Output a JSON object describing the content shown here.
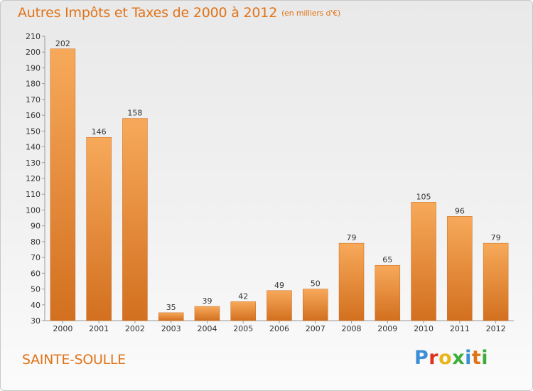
{
  "title": "Autres Impôts et Taxes de 2000 à 2012",
  "subtitle": "(en milliers d'€)",
  "place": "SAINTE-SOULLE",
  "logo": {
    "letters": [
      "P",
      "r",
      "o",
      "x",
      "i",
      "t",
      "i"
    ],
    "colors": [
      "#3b8fd4",
      "#e0301e",
      "#e8b51a",
      "#3cae3c",
      "#3b8fd4",
      "#e07418",
      "#3cae3c"
    ]
  },
  "colors": {
    "accent": "#e07418",
    "bar_top": "#f7a95a",
    "bar_bottom": "#d2701f"
  },
  "chart_data": {
    "type": "bar",
    "title": "Autres Impôts et Taxes de 2000 à 2012",
    "subtitle": "(en milliers d'€)",
    "categories": [
      "2000",
      "2001",
      "2002",
      "2003",
      "2004",
      "2005",
      "2006",
      "2007",
      "2008",
      "2009",
      "2010",
      "2011",
      "2012"
    ],
    "values": [
      202,
      146,
      158,
      35,
      39,
      42,
      49,
      50,
      79,
      65,
      105,
      96,
      79
    ],
    "ylim": [
      30,
      210
    ],
    "yticks": [
      30,
      40,
      50,
      60,
      70,
      80,
      90,
      100,
      110,
      120,
      130,
      140,
      150,
      160,
      170,
      180,
      190,
      200,
      210
    ],
    "grid": false,
    "xlabel": "",
    "ylabel": ""
  }
}
